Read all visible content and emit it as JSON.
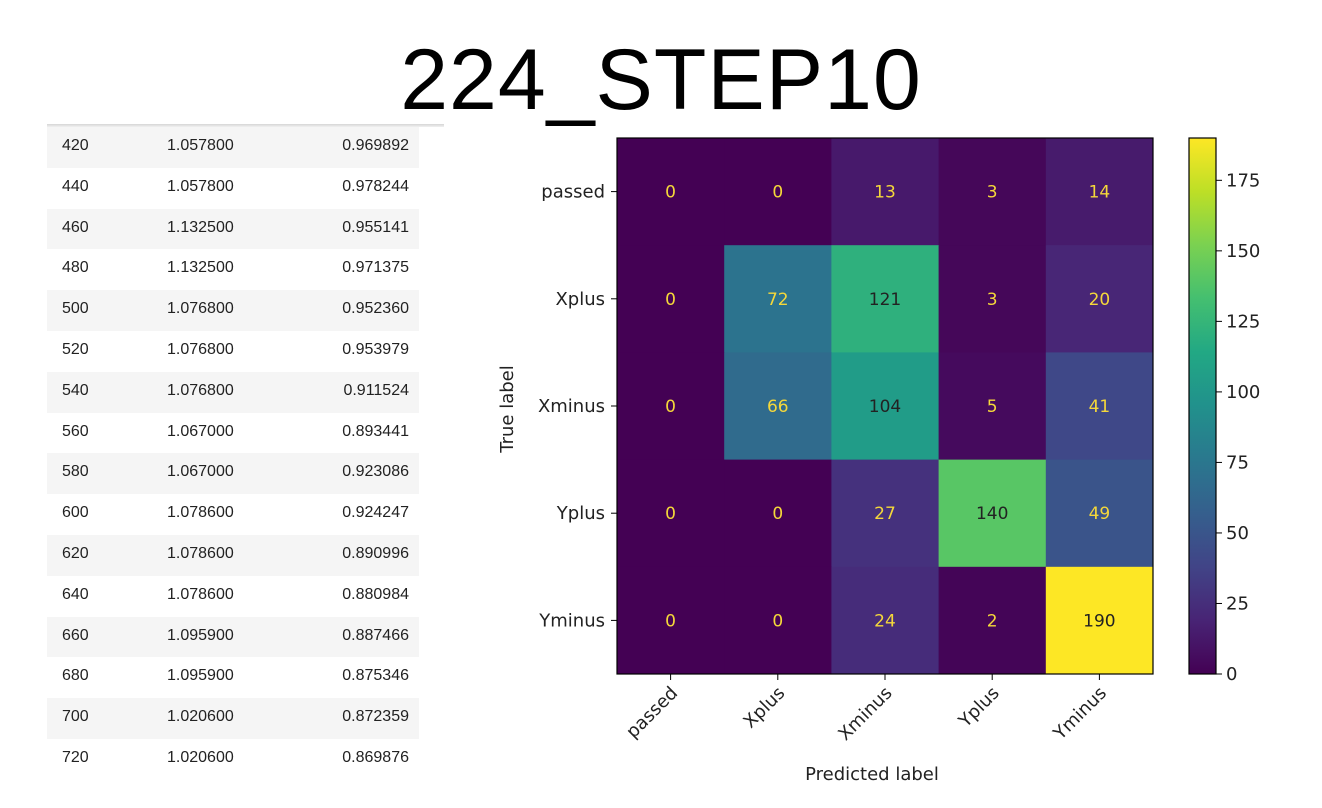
{
  "title": "224_STEP10",
  "table": {
    "rows": [
      [
        "420",
        "1.057800",
        "0.969892"
      ],
      [
        "440",
        "1.057800",
        "0.978244"
      ],
      [
        "460",
        "1.132500",
        "0.955141"
      ],
      [
        "480",
        "1.132500",
        "0.971375"
      ],
      [
        "500",
        "1.076800",
        "0.952360"
      ],
      [
        "520",
        "1.076800",
        "0.953979"
      ],
      [
        "540",
        "1.076800",
        "0.911524"
      ],
      [
        "560",
        "1.067000",
        "0.893441"
      ],
      [
        "580",
        "1.067000",
        "0.923086"
      ],
      [
        "600",
        "1.078600",
        "0.924247"
      ],
      [
        "620",
        "1.078600",
        "0.890996"
      ],
      [
        "640",
        "1.078600",
        "0.880984"
      ],
      [
        "660",
        "1.095900",
        "0.887466"
      ],
      [
        "680",
        "1.095900",
        "0.875346"
      ],
      [
        "700",
        "1.020600",
        "0.872359"
      ],
      [
        "720",
        "1.020600",
        "0.869876"
      ]
    ]
  },
  "chart_data": {
    "type": "heatmap",
    "title": "",
    "xlabel": "Predicted label",
    "ylabel": "True label",
    "x_categories": [
      "passed",
      "Xplus",
      "Xminus",
      "Yplus",
      "Yminus"
    ],
    "y_categories": [
      "passed",
      "Xplus",
      "Xminus",
      "Yplus",
      "Yminus"
    ],
    "matrix": [
      [
        0,
        0,
        13,
        3,
        14
      ],
      [
        0,
        72,
        121,
        3,
        20
      ],
      [
        0,
        66,
        104,
        5,
        41
      ],
      [
        0,
        0,
        27,
        140,
        49
      ],
      [
        0,
        0,
        24,
        2,
        190
      ]
    ],
    "colormap": "viridis",
    "colorbar": {
      "min": 0,
      "max": 190,
      "ticks": [
        0,
        25,
        50,
        75,
        100,
        125,
        150,
        175
      ]
    },
    "text_color_light": "#f5d83a",
    "text_color_dark": "#222222"
  }
}
